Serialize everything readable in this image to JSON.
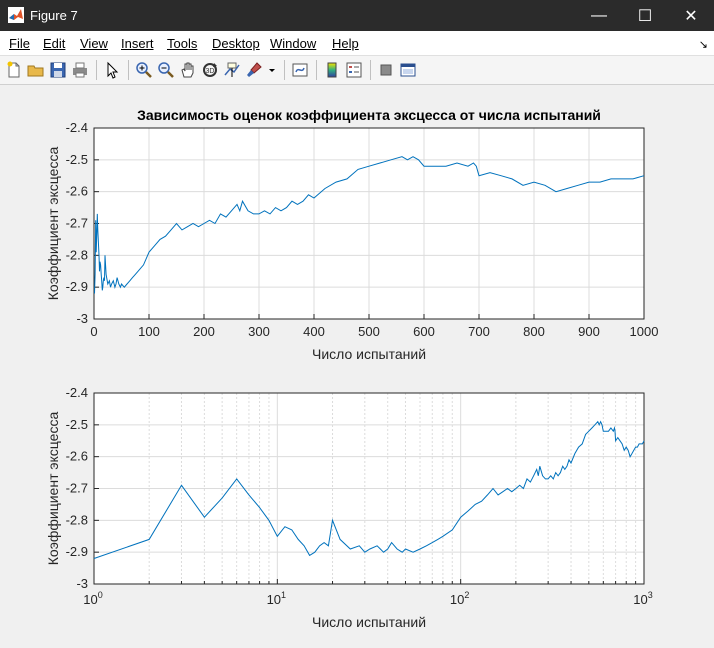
{
  "window": {
    "title": "Figure 7"
  },
  "window_controls": {
    "minimize": "—",
    "maximize": "☐",
    "close": "✕"
  },
  "menu": [
    "File",
    "Edit",
    "View",
    "Insert",
    "Tools",
    "Desktop",
    "Window",
    "Help"
  ],
  "menu_dock_glyph": "↘",
  "toolbar": [
    "new-figure-icon",
    "open-file-icon",
    "save-icon",
    "print-icon",
    "pointer-icon",
    "zoom-in-icon",
    "zoom-out-icon",
    "pan-icon",
    "rotate-3d-icon",
    "data-cursor-icon",
    "brush-icon",
    "link-plot-icon",
    "colorbar-icon",
    "legend-icon",
    "hide-plot-tools-icon",
    "show-plot-tools-icon"
  ],
  "colors": {
    "line": "#0072bd",
    "grid": "#dcdcdc",
    "axes_bg": "#ffffff"
  },
  "chart_data": [
    {
      "type": "line",
      "title": "Зависимость оценок коэффициента эксцесса от числа испытаний",
      "xlabel": "Число испытаний",
      "ylabel": "Коэффициент эксцесса",
      "xscale": "linear",
      "xlim": [
        0,
        1000
      ],
      "ylim": [
        -3,
        -2.4
      ],
      "xticks": [
        "0",
        "100",
        "200",
        "300",
        "400",
        "500",
        "600",
        "700",
        "800",
        "900",
        "1000"
      ],
      "yticks": [
        "-3",
        "-2.9",
        "-2.8",
        "-2.7",
        "-2.6",
        "-2.5",
        "-2.4"
      ],
      "grid": true,
      "series": [
        {
          "x": [
            1,
            2,
            3,
            4,
            5,
            6,
            7,
            8,
            9,
            10,
            11,
            12,
            13,
            14,
            15,
            16,
            17,
            18,
            19,
            20,
            22,
            25,
            28,
            30,
            32,
            35,
            38,
            40,
            42,
            45,
            48,
            50,
            55,
            60,
            65,
            70,
            75,
            80,
            90,
            100,
            110,
            120,
            130,
            140,
            150,
            160,
            170,
            180,
            190,
            200,
            210,
            220,
            230,
            240,
            250,
            260,
            265,
            270,
            280,
            290,
            300,
            310,
            320,
            330,
            340,
            350,
            360,
            370,
            380,
            390,
            400,
            420,
            440,
            460,
            480,
            500,
            520,
            540,
            560,
            570,
            580,
            590,
            600,
            620,
            640,
            660,
            680,
            690,
            695,
            700,
            720,
            740,
            760,
            780,
            800,
            820,
            840,
            860,
            880,
            900,
            920,
            940,
            960,
            980,
            1000
          ],
          "y": [
            -2.92,
            -2.86,
            -2.69,
            -2.79,
            -2.73,
            -2.67,
            -2.72,
            -2.76,
            -2.8,
            -2.85,
            -2.82,
            -2.83,
            -2.86,
            -2.88,
            -2.91,
            -2.9,
            -2.88,
            -2.87,
            -2.88,
            -2.8,
            -2.86,
            -2.89,
            -2.88,
            -2.9,
            -2.89,
            -2.88,
            -2.9,
            -2.89,
            -2.87,
            -2.89,
            -2.9,
            -2.89,
            -2.9,
            -2.89,
            -2.88,
            -2.87,
            -2.86,
            -2.85,
            -2.83,
            -2.79,
            -2.77,
            -2.75,
            -2.74,
            -2.72,
            -2.7,
            -2.72,
            -2.71,
            -2.7,
            -2.71,
            -2.7,
            -2.69,
            -2.7,
            -2.67,
            -2.68,
            -2.66,
            -2.64,
            -2.66,
            -2.63,
            -2.66,
            -2.67,
            -2.67,
            -2.66,
            -2.67,
            -2.65,
            -2.66,
            -2.65,
            -2.63,
            -2.64,
            -2.63,
            -2.61,
            -2.62,
            -2.59,
            -2.57,
            -2.56,
            -2.53,
            -2.52,
            -2.51,
            -2.5,
            -2.49,
            -2.5,
            -2.49,
            -2.5,
            -2.52,
            -2.52,
            -2.52,
            -2.51,
            -2.52,
            -2.51,
            -2.52,
            -2.55,
            -2.54,
            -2.55,
            -2.56,
            -2.58,
            -2.57,
            -2.58,
            -2.6,
            -2.59,
            -2.58,
            -2.57,
            -2.57,
            -2.56,
            -2.56,
            -2.56,
            -2.55
          ]
        }
      ]
    },
    {
      "type": "line",
      "title": "",
      "xlabel": "Число испытаний",
      "ylabel": "Коэффициент эксцесса",
      "xscale": "log",
      "xlim": [
        1,
        1000
      ],
      "ylim": [
        -3,
        -2.4
      ],
      "xticks": [
        {
          "base": "10",
          "exp": "0"
        },
        {
          "base": "10",
          "exp": "1"
        },
        {
          "base": "10",
          "exp": "2"
        },
        {
          "base": "10",
          "exp": "3"
        }
      ],
      "yticks": [
        "-3",
        "-2.9",
        "-2.8",
        "-2.7",
        "-2.6",
        "-2.5",
        "-2.4"
      ],
      "grid": true,
      "same_series_as_chart": 0
    }
  ]
}
